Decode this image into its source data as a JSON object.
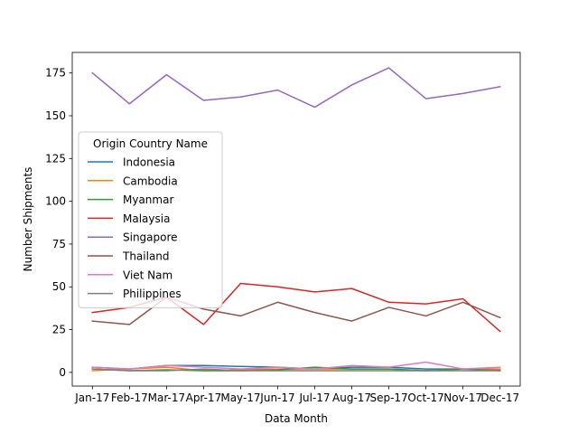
{
  "chart_data": {
    "type": "line",
    "xlabel": "Data Month",
    "ylabel": "Number Shipments",
    "x": [
      "Jan-17",
      "Feb-17",
      "Mar-17",
      "Apr-17",
      "May-17",
      "Jun-17",
      "Jul-17",
      "Aug-17",
      "Sep-17",
      "Oct-17",
      "Nov-17",
      "Dec-17"
    ],
    "ylim": [
      -8,
      187
    ],
    "yticks": [
      0,
      25,
      50,
      75,
      100,
      125,
      150,
      175
    ],
    "grid": false,
    "legend": {
      "title": "Origin Country Name",
      "placement": "center-left"
    },
    "series": [
      {
        "name": "Indonesia",
        "color": "#1f77b4",
        "values": [
          3,
          2,
          4,
          4,
          3.5,
          3,
          2,
          3,
          3,
          2,
          2,
          1.5
        ]
      },
      {
        "name": "Cambodia",
        "color": "#ff7f0e",
        "values": [
          1,
          2,
          3,
          1,
          1.5,
          2,
          2,
          2,
          2,
          1,
          2,
          2
        ]
      },
      {
        "name": "Myanmar",
        "color": "#2ca02c",
        "values": [
          2,
          1,
          1.5,
          1,
          1,
          1.5,
          3,
          2,
          2,
          1,
          2,
          1
        ]
      },
      {
        "name": "Malaysia",
        "color": "#d62728",
        "values": [
          35,
          38,
          44,
          28,
          52,
          50,
          47,
          49,
          41,
          40,
          43,
          24
        ]
      },
      {
        "name": "Singapore",
        "color": "#9467bd",
        "values": [
          175,
          157,
          174,
          159,
          161,
          165,
          155,
          168,
          178,
          160,
          163,
          167
        ]
      },
      {
        "name": "Thailand",
        "color": "#8c564b",
        "values": [
          30,
          28,
          44,
          37,
          33,
          41,
          35,
          30,
          38,
          33,
          41,
          32
        ]
      },
      {
        "name": "Viet Nam",
        "color": "#e377c2",
        "values": [
          3,
          2,
          4,
          3,
          2,
          3,
          2,
          4,
          3,
          6,
          2,
          3
        ]
      },
      {
        "name": "Philippines",
        "color": "#7f7f7f",
        "values": [
          2,
          1,
          1,
          2,
          1,
          1,
          1,
          1,
          1,
          1,
          1,
          1
        ]
      }
    ]
  }
}
